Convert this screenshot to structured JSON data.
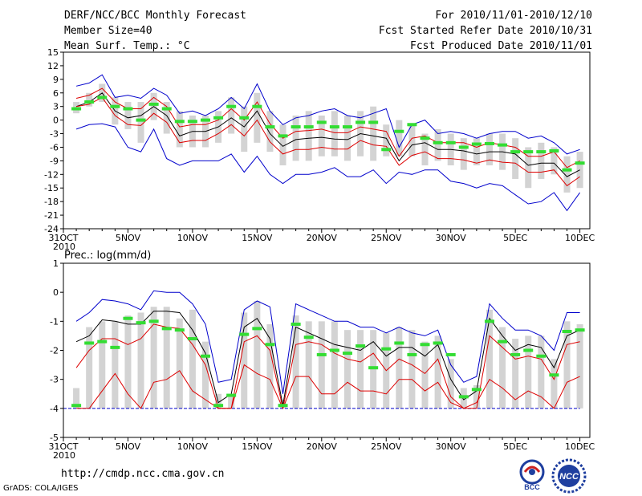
{
  "header": {
    "title": "DERF/NCC/BCC Monthly Forecast",
    "member_size": "Member Size=40",
    "variable": "Mean Surf. Temp.: °C",
    "period": "For 2010/11/01-2010/12/10",
    "started": "Fcst Started Refer Date 2010/10/31",
    "produced": "Fcst Produced Date 2010/11/01"
  },
  "footer": {
    "url": "http://cmdp.ncc.cma.gov.cn",
    "credit": "GrADS: COLA/IGES",
    "logo_bcc": "BCC",
    "logo_ncc": "NCC"
  },
  "colors": {
    "ensemble_max_min": "#0000cc",
    "ensemble_spread": "#dd0000",
    "ensemble_mean": "#000000",
    "observed": "#33dd33",
    "member_range": "#d3d3d3"
  },
  "chart_data": [
    {
      "type": "line",
      "title": "Mean Surf. Temp.: °C",
      "ylim": [
        -24,
        15
      ],
      "yticks": [
        15,
        12,
        9,
        6,
        3,
        0,
        -3,
        -6,
        -9,
        -12,
        -15,
        -18,
        -21,
        -24
      ],
      "xlim": [
        0,
        40
      ],
      "xticks": [
        {
          "day": 0,
          "label": "31OCT",
          "sub": "2010"
        },
        {
          "day": 5,
          "label": "5NOV"
        },
        {
          "day": 10,
          "label": "10NOV"
        },
        {
          "day": 15,
          "label": "15NOV"
        },
        {
          "day": 20,
          "label": "20NOV"
        },
        {
          "day": 25,
          "label": "25NOV"
        },
        {
          "day": 30,
          "label": "30NOV"
        },
        {
          "day": 35,
          "label": "5DEC"
        },
        {
          "day": 40,
          "label": "10DEC"
        }
      ],
      "x": [
        1,
        2,
        3,
        4,
        5,
        6,
        7,
        8,
        9,
        10,
        11,
        12,
        13,
        14,
        15,
        16,
        17,
        18,
        19,
        20,
        21,
        22,
        23,
        24,
        25,
        26,
        27,
        28,
        29,
        30,
        31,
        32,
        33,
        34,
        35,
        36,
        37,
        38,
        39,
        40
      ],
      "series": [
        {
          "name": "max",
          "color": "#0000cc",
          "values": [
            7.5,
            8.2,
            10,
            5,
            5.5,
            4.8,
            7,
            5.5,
            1.5,
            2,
            1,
            2.5,
            5,
            2.5,
            8,
            2,
            -1,
            0.5,
            1,
            2,
            2.5,
            1,
            0.5,
            1.5,
            2.5,
            -6,
            -1,
            0,
            -3,
            -2.5,
            -3,
            -4,
            -3,
            -2.5,
            -2.5,
            -4,
            -3.5,
            -5,
            -7.5,
            -6.5
          ]
        },
        {
          "name": "upper",
          "color": "#dd0000",
          "values": [
            4.8,
            5.5,
            7,
            4,
            2.5,
            2.5,
            5,
            3,
            -1.5,
            -1,
            -1,
            0,
            2.5,
            0,
            4,
            -0.8,
            -4,
            -2.5,
            -2.3,
            -2,
            -2.8,
            -2.8,
            -1.5,
            -2,
            -2.5,
            -8,
            -4,
            -3.5,
            -5,
            -5,
            -5,
            -6,
            -5,
            -5.5,
            -6,
            -8,
            -8,
            -7,
            -10.5,
            -9
          ]
        },
        {
          "name": "mean",
          "color": "#000000",
          "values": [
            3,
            4,
            6,
            2,
            0.5,
            1,
            3,
            1,
            -3.5,
            -2.5,
            -2.5,
            -1.5,
            0.5,
            -1.5,
            2,
            -3,
            -5.8,
            -4.3,
            -4,
            -3.8,
            -4.2,
            -4.3,
            -3,
            -3.5,
            -4,
            -9,
            -5.5,
            -5,
            -6.5,
            -6.5,
            -6.8,
            -7.5,
            -7,
            -7,
            -7.5,
            -10,
            -9.5,
            -9.5,
            -12.5,
            -11
          ]
        },
        {
          "name": "lower",
          "color": "#dd0000",
          "values": [
            3,
            3.5,
            5,
            1,
            -1,
            -1.2,
            1.5,
            -0.5,
            -5,
            -4.5,
            -4.5,
            -3,
            -1,
            -3.5,
            0,
            -4.8,
            -7.5,
            -6.5,
            -6.5,
            -6,
            -6.4,
            -6.4,
            -4.5,
            -5.5,
            -5.8,
            -10,
            -7.8,
            -7,
            -8.5,
            -8.5,
            -8.8,
            -9.5,
            -8.8,
            -9.3,
            -9.5,
            -11.5,
            -11.5,
            -11,
            -14.5,
            -12.5
          ]
        },
        {
          "name": "min",
          "color": "#0000cc",
          "values": [
            -2,
            -1,
            -0.8,
            -1.5,
            -6,
            -7,
            -2,
            -8.5,
            -10,
            -9,
            -9,
            -9,
            -7.5,
            -11.5,
            -8,
            -12,
            -14,
            -12,
            -12,
            -11.5,
            -10.5,
            -12.5,
            -12.5,
            -11,
            -14,
            -11.5,
            -12,
            -11,
            -11,
            -13.5,
            -14,
            -15,
            -14,
            -14.5,
            -16.5,
            -18.5,
            -18,
            -16,
            -20,
            -16
          ]
        }
      ],
      "observed": [
        2.5,
        4,
        5,
        3,
        2.5,
        0,
        3.5,
        2.5,
        -0.3,
        -0.3,
        0,
        0.5,
        3,
        0.5,
        3,
        -1.5,
        -3.5,
        -1.5,
        -1.5,
        -0.5,
        -1.5,
        -1.5,
        -0.5,
        -0.5,
        -6.5,
        -2.5,
        -1,
        -4,
        -5,
        -5,
        -6,
        -5.3,
        -5.2,
        -5.5,
        -7,
        -7,
        -7,
        -6.8,
        -11,
        -9.5
      ],
      "member_bars": [
        [
          1.5,
          4
        ],
        [
          3,
          6
        ],
        [
          4,
          8
        ],
        [
          -1,
          5
        ],
        [
          -2,
          4
        ],
        [
          -5,
          4
        ],
        [
          0,
          6
        ],
        [
          -3,
          4
        ],
        [
          -6,
          2
        ],
        [
          -6,
          1
        ],
        [
          -6,
          1
        ],
        [
          -5,
          2
        ],
        [
          -3,
          5
        ],
        [
          -7,
          3
        ],
        [
          -5,
          6
        ],
        [
          -7,
          2
        ],
        [
          -10,
          -1
        ],
        [
          -9,
          1
        ],
        [
          -9,
          2
        ],
        [
          -8,
          1
        ],
        [
          -8,
          2
        ],
        [
          -9,
          1
        ],
        [
          -8,
          2
        ],
        [
          -9,
          3
        ],
        [
          -8,
          -1
        ],
        [
          -8,
          0
        ],
        [
          -8,
          -1
        ],
        [
          -10,
          -3
        ],
        [
          -9,
          -2
        ],
        [
          -10,
          -3
        ],
        [
          -11,
          -4
        ],
        [
          -10,
          -4
        ],
        [
          -10,
          -3
        ],
        [
          -11,
          -3
        ],
        [
          -13,
          -4
        ],
        [
          -15,
          -6
        ],
        [
          -13,
          -5
        ],
        [
          -12,
          -6
        ],
        [
          -16,
          -8
        ],
        [
          -15,
          -7
        ]
      ]
    },
    {
      "type": "line",
      "title": "Prec.: log(mm/d)",
      "ylim": [
        -5,
        1
      ],
      "yticks": [
        1,
        0,
        -1,
        -2,
        -3,
        -4,
        -5
      ],
      "xlim": [
        0,
        40
      ],
      "xticks": [
        {
          "day": 0,
          "label": "31OCT",
          "sub": "2010"
        },
        {
          "day": 5,
          "label": "5NOV"
        },
        {
          "day": 10,
          "label": "10NOV"
        },
        {
          "day": 15,
          "label": "15NOV"
        },
        {
          "day": 20,
          "label": "20NOV"
        },
        {
          "day": 25,
          "label": "25NOV"
        },
        {
          "day": 30,
          "label": "30NOV"
        },
        {
          "day": 35,
          "label": "5DEC"
        },
        {
          "day": 40,
          "label": "10DEC"
        }
      ],
      "baseline": -4,
      "x": [
        1,
        2,
        3,
        4,
        5,
        6,
        7,
        8,
        9,
        10,
        11,
        12,
        13,
        14,
        15,
        16,
        17,
        18,
        19,
        20,
        21,
        22,
        23,
        24,
        25,
        26,
        27,
        28,
        29,
        30,
        31,
        32,
        33,
        34,
        35,
        36,
        37,
        38,
        39,
        40
      ],
      "series": [
        {
          "name": "max",
          "color": "#0000cc",
          "values": [
            -1,
            -0.7,
            -0.25,
            -0.3,
            -0.4,
            -0.6,
            0.05,
            0,
            0,
            -0.4,
            -1.1,
            -3.1,
            -3,
            -0.6,
            -0.3,
            -0.5,
            -3.5,
            -0.4,
            -0.6,
            -0.8,
            -1,
            -1,
            -1.2,
            -1.2,
            -1.4,
            -1.2,
            -1.4,
            -1.5,
            -1.3,
            -2.5,
            -3.1,
            -2.9,
            -0.4,
            -0.9,
            -1.3,
            -1.3,
            -1.5,
            -2,
            -0.7,
            -0.7
          ]
        },
        {
          "name": "mean",
          "color": "#000000",
          "values": [
            -1.7,
            -1.5,
            -0.95,
            -1,
            -1.1,
            -1.1,
            -0.65,
            -0.65,
            -0.7,
            -1.3,
            -2.1,
            -3.8,
            -3.5,
            -1.2,
            -0.9,
            -1.6,
            -3.9,
            -1.2,
            -1.4,
            -1.6,
            -1.8,
            -1.9,
            -2,
            -1.7,
            -2.2,
            -1.9,
            -1.9,
            -2.2,
            -1.8,
            -3,
            -3.7,
            -3.4,
            -0.9,
            -1.5,
            -2,
            -1.8,
            -1.9,
            -2.6,
            -1.5,
            -1.3
          ]
        },
        {
          "name": "upper",
          "color": "#dd0000",
          "values": [
            -2.6,
            -2,
            -1.6,
            -1.6,
            -1.8,
            -1.6,
            -1.1,
            -1.2,
            -1.25,
            -1.8,
            -2.5,
            -4,
            -4,
            -1.7,
            -1.5,
            -2,
            -4,
            -1.8,
            -1.7,
            -1.8,
            -2.1,
            -2.3,
            -2.4,
            -2.1,
            -2.7,
            -2.3,
            -2.5,
            -2.8,
            -2.3,
            -3.6,
            -4,
            -4,
            -1.5,
            -1.9,
            -2.3,
            -2.2,
            -2.3,
            -3,
            -1.8,
            -1.7
          ]
        },
        {
          "name": "lower",
          "color": "#dd0000",
          "values": [
            -4,
            -4,
            -3.4,
            -2.8,
            -3.5,
            -4,
            -3.1,
            -3,
            -2.7,
            -3.4,
            -3.7,
            -4,
            -4,
            -2.5,
            -2.8,
            -3,
            -4,
            -2.9,
            -2.9,
            -3.5,
            -3.5,
            -3.1,
            -3.4,
            -3.4,
            -3.5,
            -3,
            -3,
            -3.4,
            -3.1,
            -3.8,
            -4,
            -3.8,
            -3,
            -3.3,
            -3.7,
            -3.4,
            -3.6,
            -4,
            -3.1,
            -2.9
          ]
        }
      ],
      "observed": [
        -3.9,
        -1.75,
        -1.7,
        -1.9,
        -0.9,
        -1.05,
        -1,
        -1.25,
        -1.3,
        -1.6,
        -2.2,
        -3.9,
        -3.55,
        -1.45,
        -1.25,
        -1.8,
        -3.9,
        -1.1,
        -1.55,
        -2.15,
        -2,
        -2.1,
        -1.85,
        -2.6,
        -1.95,
        -1.75,
        -2.15,
        -1.8,
        -1.75,
        -2.15,
        -3.6,
        -3.35,
        -1,
        -1.7,
        -2.15,
        -2,
        -2.2,
        -2.85,
        -1.35,
        -1.3
      ],
      "member_bars": [
        [
          -4,
          -3.3
        ],
        [
          -4,
          -1.2
        ],
        [
          -4,
          -1
        ],
        [
          -4,
          -1
        ],
        [
          -4,
          -0.8
        ],
        [
          -4,
          -0.7
        ],
        [
          -4,
          -0.5
        ],
        [
          -4,
          -0.5
        ],
        [
          -4,
          -0.9
        ],
        [
          -4,
          -0.6
        ],
        [
          -4,
          -1.7
        ],
        [
          -4,
          -3.5
        ],
        [
          -4,
          -3.5
        ],
        [
          -4,
          -0.7
        ],
        [
          -4,
          -0.3
        ],
        [
          -4,
          -1.1
        ],
        [
          -4,
          -3.7
        ],
        [
          -4,
          -0.8
        ],
        [
          -4,
          -1
        ],
        [
          -4,
          -1
        ],
        [
          -4,
          -1
        ],
        [
          -4,
          -1.3
        ],
        [
          -4,
          -1.3
        ],
        [
          -4,
          -1.3
        ],
        [
          -4,
          -1.4
        ],
        [
          -4,
          -1.2
        ],
        [
          -4,
          -1.3
        ],
        [
          -4,
          -1.7
        ],
        [
          -4,
          -1.5
        ],
        [
          -4,
          -2.3
        ],
        [
          -4,
          -3.3
        ],
        [
          -4,
          -3.2
        ],
        [
          -4,
          -0.6
        ],
        [
          -4,
          -1.2
        ],
        [
          -4,
          -1.6
        ],
        [
          -4,
          -1.5
        ],
        [
          -4,
          -1.5
        ],
        [
          -4,
          -2.3
        ],
        [
          -4,
          -1
        ],
        [
          -4,
          -1.1
        ]
      ]
    }
  ]
}
